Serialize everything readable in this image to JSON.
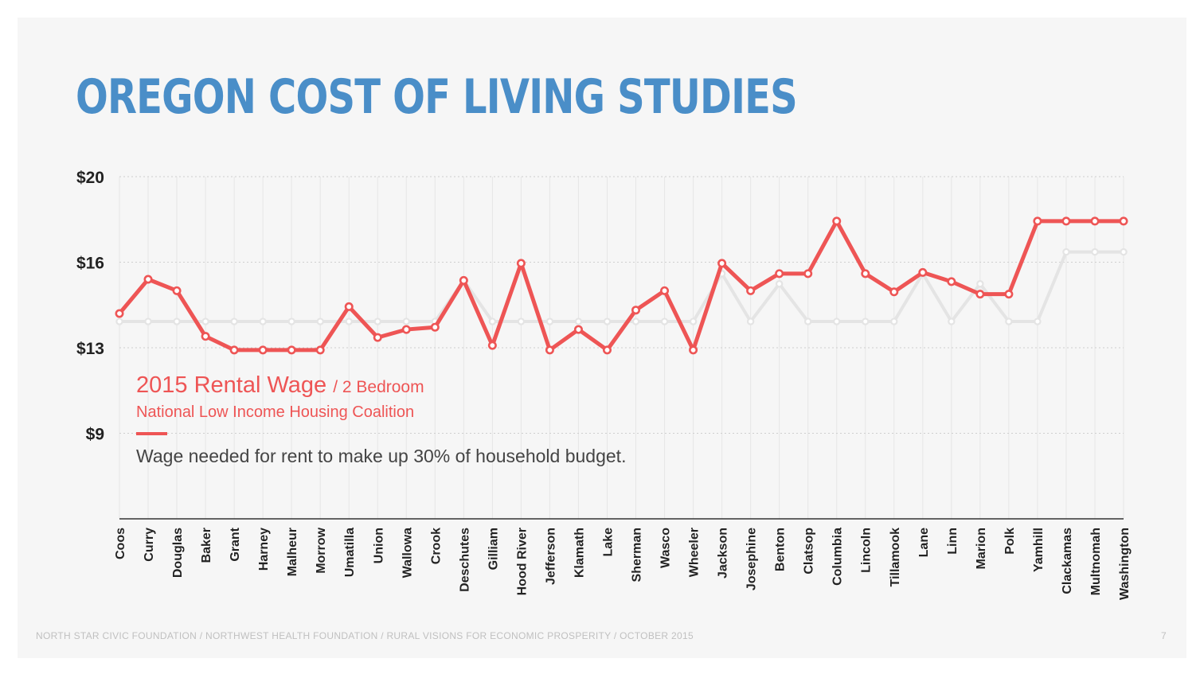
{
  "slide": {
    "title": "OREGON COST OF LIVING STUDIES",
    "footer": "NORTH STAR CIVIC FOUNDATION / NORTHWEST HEALTH FOUNDATION / RURAL VISIONS FOR ECONOMIC PROSPERITY / OCTOBER 2015",
    "page_number": "7"
  },
  "legend": {
    "title": "2015 Rental Wage",
    "subtitle": "/ 2 Bedroom",
    "source": "National Low Income Housing Coalition",
    "description": "Wage needed for rent to make up 30% of household budget."
  },
  "colors": {
    "title": "#4a8ec8",
    "primary_series": "#ee5555",
    "secondary_series": "#e4e4e4",
    "background": "#f6f6f6"
  },
  "chart_data": {
    "type": "line",
    "title": "",
    "xlabel": "",
    "ylabel": "",
    "ylim": [
      5,
      20
    ],
    "grid": true,
    "ytick_labels": [
      "$20",
      "$16",
      "$13",
      "$9"
    ],
    "ytick_values": [
      20,
      16.25,
      12.5,
      8.75
    ],
    "categories": [
      "Coos",
      "Curry",
      "Douglas",
      "Baker",
      "Grant",
      "Harney",
      "Malheur",
      "Morrow",
      "Umatilla",
      "Union",
      "Wallowa",
      "Crook",
      "Deschutes",
      "Gilliam",
      "Hood River",
      "Jefferson",
      "Klamath",
      "Lake",
      "Sherman",
      "Wasco",
      "Wheeler",
      "Jackson",
      "Josephine",
      "Benton",
      "Clatsop",
      "Columbia",
      "Lincoln",
      "Tillamook",
      "Lane",
      "Linn",
      "Marion",
      "Polk",
      "Yamhill",
      "Clackamas",
      "Multnomah",
      "Washington"
    ],
    "series": [
      {
        "name": "2015 Rental Wage",
        "values": [
          14.0,
          15.5,
          15.0,
          13.0,
          12.4,
          12.4,
          12.4,
          12.4,
          14.3,
          12.95,
          13.3,
          13.4,
          15.45,
          12.6,
          16.2,
          12.4,
          13.3,
          12.4,
          14.15,
          15.0,
          12.4,
          16.2,
          15.0,
          15.75,
          15.75,
          18.05,
          15.75,
          14.95,
          15.8,
          15.4,
          14.85,
          14.85,
          18.05,
          18.05,
          18.05,
          18.05
        ]
      },
      {
        "values": [
          13.65,
          13.65,
          13.65,
          13.65,
          13.65,
          13.65,
          13.65,
          13.65,
          13.65,
          13.65,
          13.65,
          13.65,
          15.45,
          13.65,
          13.65,
          13.65,
          13.65,
          13.65,
          13.65,
          13.65,
          13.65,
          15.75,
          13.65,
          15.3,
          13.65,
          13.65,
          13.65,
          13.65,
          15.75,
          13.65,
          15.3,
          13.65,
          13.65,
          16.7,
          16.7,
          16.7
        ]
      }
    ]
  }
}
